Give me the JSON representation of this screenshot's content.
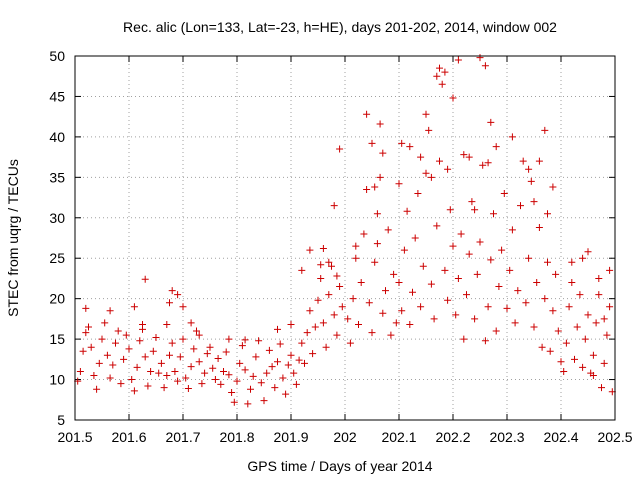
{
  "chart_data": {
    "type": "scatter",
    "title": "Rec. alic (Lon=133, Lat=-23, h=HE), days 201-202, 2014, window 002",
    "xlabel": "GPS time / Days of year 2014",
    "ylabel": "STEC from uqrg / TECUs",
    "xlim": [
      201.5,
      202.5
    ],
    "ylim": [
      5,
      50
    ],
    "xticks": [
      "201.5",
      "201.6",
      "201.7",
      "201.8",
      "201.9",
      "202",
      "202.1",
      "202.2",
      "202.3",
      "202.4",
      "202.5"
    ],
    "yticks": [
      "5",
      "10",
      "15",
      "20",
      "25",
      "30",
      "35",
      "40",
      "45",
      "50"
    ],
    "grid": true,
    "marker": "+",
    "color": "#cc0000",
    "points": [
      [
        201.505,
        9.8
      ],
      [
        201.51,
        11.0
      ],
      [
        201.515,
        13.5
      ],
      [
        201.52,
        15.8
      ],
      [
        201.525,
        16.5
      ],
      [
        201.53,
        14.0
      ],
      [
        201.535,
        10.5
      ],
      [
        201.54,
        8.8
      ],
      [
        201.545,
        12.0
      ],
      [
        201.55,
        15.0
      ],
      [
        201.555,
        17.0
      ],
      [
        201.56,
        13.0
      ],
      [
        201.565,
        10.2
      ],
      [
        201.57,
        11.8
      ],
      [
        201.575,
        14.5
      ],
      [
        201.58,
        16.0
      ],
      [
        201.585,
        9.5
      ],
      [
        201.59,
        12.5
      ],
      [
        201.595,
        15.5
      ],
      [
        201.6,
        13.8
      ],
      [
        201.605,
        10.0
      ],
      [
        201.61,
        8.6
      ],
      [
        201.615,
        11.5
      ],
      [
        201.62,
        14.8
      ],
      [
        201.625,
        16.8
      ],
      [
        201.63,
        12.8
      ],
      [
        201.635,
        9.2
      ],
      [
        201.64,
        11.0
      ],
      [
        201.645,
        13.5
      ],
      [
        201.65,
        15.2
      ],
      [
        201.52,
        18.8
      ],
      [
        201.565,
        18.5
      ],
      [
        201.61,
        19.0
      ],
      [
        201.625,
        16.2
      ],
      [
        201.63,
        22.4
      ],
      [
        201.655,
        10.8
      ],
      [
        201.66,
        12.0
      ],
      [
        201.665,
        9.0
      ],
      [
        201.67,
        10.5
      ],
      [
        201.675,
        13.0
      ],
      [
        201.68,
        14.5
      ],
      [
        201.685,
        11.0
      ],
      [
        201.69,
        9.8
      ],
      [
        201.695,
        12.8
      ],
      [
        201.7,
        15.0
      ],
      [
        201.705,
        10.2
      ],
      [
        201.71,
        8.9
      ],
      [
        201.715,
        11.6
      ],
      [
        201.72,
        13.8
      ],
      [
        201.725,
        16.0
      ],
      [
        201.73,
        12.2
      ],
      [
        201.735,
        9.5
      ],
      [
        201.74,
        10.8
      ],
      [
        201.745,
        13.2
      ],
      [
        201.75,
        14.0
      ],
      [
        201.755,
        11.4
      ],
      [
        201.76,
        10.0
      ],
      [
        201.765,
        12.6
      ],
      [
        201.67,
        16.8
      ],
      [
        201.675,
        19.5
      ],
      [
        201.68,
        21.0
      ],
      [
        201.69,
        20.5
      ],
      [
        201.7,
        19.0
      ],
      [
        201.715,
        17.0
      ],
      [
        201.73,
        15.5
      ],
      [
        201.77,
        9.4
      ],
      [
        201.775,
        11.0
      ],
      [
        201.78,
        13.4
      ],
      [
        201.785,
        10.6
      ],
      [
        201.79,
        8.4
      ],
      [
        201.795,
        7.2
      ],
      [
        201.8,
        9.8
      ],
      [
        201.805,
        12.0
      ],
      [
        201.81,
        14.2
      ],
      [
        201.815,
        11.2
      ],
      [
        201.82,
        7.0
      ],
      [
        201.825,
        8.8
      ],
      [
        201.83,
        10.4
      ],
      [
        201.835,
        12.8
      ],
      [
        201.84,
        14.8
      ],
      [
        201.845,
        9.6
      ],
      [
        201.85,
        7.4
      ],
      [
        201.855,
        10.8
      ],
      [
        201.86,
        13.6
      ],
      [
        201.865,
        11.6
      ],
      [
        201.87,
        9.0
      ],
      [
        201.875,
        12.2
      ],
      [
        201.88,
        14.4
      ],
      [
        201.885,
        10.2
      ],
      [
        201.89,
        8.2
      ],
      [
        201.895,
        11.8
      ],
      [
        201.9,
        13.0
      ],
      [
        201.905,
        10.8
      ],
      [
        201.91,
        9.4
      ],
      [
        201.915,
        12.4
      ],
      [
        201.785,
        15.0
      ],
      [
        201.815,
        14.9
      ],
      [
        201.875,
        16.2
      ],
      [
        201.9,
        16.8
      ],
      [
        201.92,
        14.5
      ],
      [
        201.925,
        12.0
      ],
      [
        201.93,
        15.8
      ],
      [
        201.935,
        18.5
      ],
      [
        201.94,
        13.2
      ],
      [
        201.945,
        16.5
      ],
      [
        201.95,
        19.8
      ],
      [
        201.955,
        22.5
      ],
      [
        201.96,
        17.0
      ],
      [
        201.965,
        14.0
      ],
      [
        201.97,
        20.5
      ],
      [
        201.975,
        24.0
      ],
      [
        201.98,
        18.0
      ],
      [
        201.985,
        15.5
      ],
      [
        201.99,
        21.5
      ],
      [
        201.995,
        19.0
      ],
      [
        201.92,
        23.5
      ],
      [
        201.935,
        26.0
      ],
      [
        201.955,
        24.2
      ],
      [
        201.96,
        26.2
      ],
      [
        201.97,
        24.5
      ],
      [
        201.98,
        31.5
      ],
      [
        201.99,
        38.5
      ],
      [
        201.985,
        22.8
      ],
      [
        202.005,
        17.5
      ],
      [
        202.01,
        14.5
      ],
      [
        202.015,
        20.0
      ],
      [
        202.02,
        25.0
      ],
      [
        202.025,
        16.8
      ],
      [
        202.03,
        22.0
      ],
      [
        202.035,
        28.0
      ],
      [
        202.04,
        33.5
      ],
      [
        202.045,
        19.5
      ],
      [
        202.05,
        15.8
      ],
      [
        202.055,
        24.5
      ],
      [
        202.06,
        30.5
      ],
      [
        202.065,
        35.0
      ],
      [
        202.07,
        18.2
      ],
      [
        202.075,
        21.0
      ],
      [
        202.08,
        28.5
      ],
      [
        202.085,
        15.5
      ],
      [
        202.09,
        23.0
      ],
      [
        202.095,
        17.0
      ],
      [
        202.04,
        42.8
      ],
      [
        202.05,
        39.2
      ],
      [
        202.055,
        33.8
      ],
      [
        202.065,
        41.6
      ],
      [
        202.07,
        38.0
      ],
      [
        202.02,
        26.5
      ],
      [
        202.06,
        26.8
      ],
      [
        202.1,
        22.0
      ],
      [
        202.105,
        18.5
      ],
      [
        202.11,
        26.0
      ],
      [
        202.115,
        30.8
      ],
      [
        202.12,
        16.8
      ],
      [
        202.125,
        20.8
      ],
      [
        202.13,
        27.5
      ],
      [
        202.135,
        33.0
      ],
      [
        202.14,
        19.0
      ],
      [
        202.145,
        24.0
      ],
      [
        202.15,
        35.5
      ],
      [
        202.155,
        40.8
      ],
      [
        202.16,
        21.8
      ],
      [
        202.165,
        17.5
      ],
      [
        202.17,
        29.0
      ],
      [
        202.175,
        37.0
      ],
      [
        202.18,
        46.5
      ],
      [
        202.185,
        23.5
      ],
      [
        202.19,
        19.8
      ],
      [
        202.195,
        31.0
      ],
      [
        202.2,
        26.5
      ],
      [
        202.1,
        34.2
      ],
      [
        202.105,
        39.2
      ],
      [
        202.12,
        38.8
      ],
      [
        202.14,
        37.5
      ],
      [
        202.15,
        42.8
      ],
      [
        202.16,
        35.0
      ],
      [
        202.17,
        47.5
      ],
      [
        202.175,
        48.5
      ],
      [
        202.185,
        48.0
      ],
      [
        202.19,
        36.0
      ],
      [
        202.2,
        44.8
      ],
      [
        202.205,
        18.0
      ],
      [
        202.21,
        22.5
      ],
      [
        202.215,
        28.0
      ],
      [
        202.22,
        15.0
      ],
      [
        202.225,
        20.5
      ],
      [
        202.23,
        25.5
      ],
      [
        202.235,
        32.0
      ],
      [
        202.24,
        17.5
      ],
      [
        202.245,
        23.0
      ],
      [
        202.25,
        27.0
      ],
      [
        202.255,
        36.5
      ],
      [
        202.26,
        14.8
      ],
      [
        202.265,
        19.0
      ],
      [
        202.27,
        24.8
      ],
      [
        202.275,
        30.5
      ],
      [
        202.28,
        16.0
      ],
      [
        202.285,
        21.5
      ],
      [
        202.29,
        26.0
      ],
      [
        202.295,
        33.0
      ],
      [
        202.3,
        18.8
      ],
      [
        202.21,
        49.5
      ],
      [
        202.22,
        37.8
      ],
      [
        202.23,
        37.5
      ],
      [
        202.25,
        49.8
      ],
      [
        202.26,
        48.8
      ],
      [
        202.27,
        41.8
      ],
      [
        202.28,
        38.8
      ],
      [
        202.265,
        36.8
      ],
      [
        202.24,
        31.0
      ],
      [
        202.305,
        23.5
      ],
      [
        202.31,
        28.5
      ],
      [
        202.315,
        17.0
      ],
      [
        202.32,
        21.0
      ],
      [
        202.325,
        31.5
      ],
      [
        202.33,
        37.0
      ],
      [
        202.335,
        19.5
      ],
      [
        202.34,
        25.0
      ],
      [
        202.345,
        34.5
      ],
      [
        202.35,
        16.5
      ],
      [
        202.355,
        22.0
      ],
      [
        202.36,
        28.8
      ],
      [
        202.365,
        14.0
      ],
      [
        202.37,
        20.0
      ],
      [
        202.375,
        24.5
      ],
      [
        202.38,
        13.5
      ],
      [
        202.385,
        18.5
      ],
      [
        202.39,
        23.0
      ],
      [
        202.395,
        16.0
      ],
      [
        202.4,
        12.2
      ],
      [
        202.31,
        40.0
      ],
      [
        202.34,
        36.0
      ],
      [
        202.36,
        37.0
      ],
      [
        202.37,
        40.8
      ],
      [
        202.385,
        33.8
      ],
      [
        202.35,
        32.0
      ],
      [
        202.375,
        30.5
      ],
      [
        202.405,
        11.0
      ],
      [
        202.41,
        14.5
      ],
      [
        202.415,
        19.0
      ],
      [
        202.42,
        22.0
      ],
      [
        202.425,
        12.5
      ],
      [
        202.43,
        16.5
      ],
      [
        202.435,
        20.5
      ],
      [
        202.44,
        11.5
      ],
      [
        202.445,
        15.0
      ],
      [
        202.45,
        18.0
      ],
      [
        202.455,
        10.8
      ],
      [
        202.46,
        13.0
      ],
      [
        202.465,
        17.0
      ],
      [
        202.47,
        20.5
      ],
      [
        202.475,
        9.0
      ],
      [
        202.48,
        12.0
      ],
      [
        202.485,
        15.5
      ],
      [
        202.49,
        19.0
      ],
      [
        202.495,
        8.5
      ],
      [
        202.42,
        24.5
      ],
      [
        202.44,
        25.0
      ],
      [
        202.45,
        25.8
      ],
      [
        202.47,
        22.5
      ],
      [
        202.49,
        23.5
      ],
      [
        202.48,
        17.5
      ],
      [
        202.46,
        10.5
      ]
    ]
  }
}
